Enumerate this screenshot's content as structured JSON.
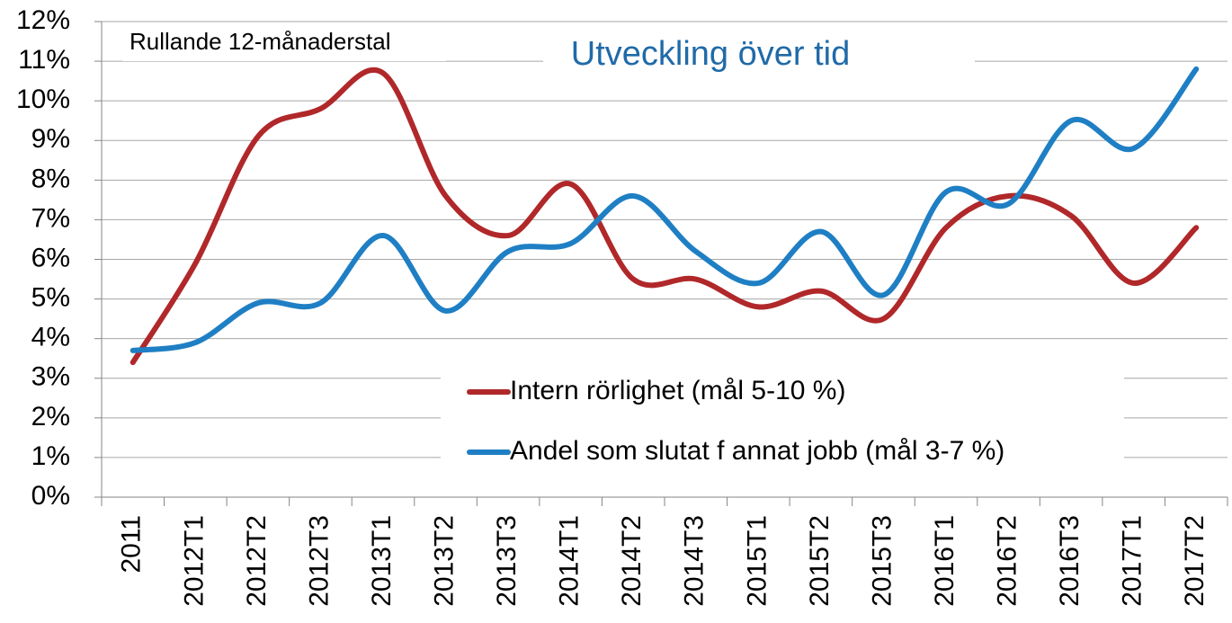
{
  "chart_data": {
    "type": "line",
    "title": "Utveckling över tid",
    "annotation": "Rullande 12-månaderstal",
    "categories": [
      "2011",
      "2012T1",
      "2012T2",
      "2012T3",
      "2013T1",
      "2013T2",
      "2013T3",
      "2014T1",
      "2014T2",
      "2014T3",
      "2015T1",
      "2015T2",
      "2015T3",
      "2016T1",
      "2016T2",
      "2016T3",
      "2017T1",
      "2017T2"
    ],
    "series": [
      {
        "name": "Intern rörlighet (mål 5-10 %)",
        "color": "#b0282a",
        "values": [
          3.4,
          5.9,
          9.1,
          9.8,
          10.7,
          7.6,
          6.6,
          7.9,
          5.5,
          5.5,
          4.8,
          5.2,
          4.5,
          6.8,
          7.6,
          7.1,
          5.4,
          6.8
        ]
      },
      {
        "name": "Andel som slutat f annat jobb (mål 3-7 %)",
        "color": "#1f7fc4",
        "values": [
          3.7,
          3.9,
          4.9,
          4.9,
          6.6,
          4.7,
          6.2,
          6.4,
          7.6,
          6.2,
          5.4,
          6.7,
          5.1,
          7.7,
          7.4,
          9.5,
          8.8,
          10.8
        ]
      }
    ],
    "ylim": [
      0,
      12
    ],
    "yticks": [
      {
        "value": 0,
        "label": "0%"
      },
      {
        "value": 1,
        "label": "1%"
      },
      {
        "value": 2,
        "label": "2%"
      },
      {
        "value": 3,
        "label": "3%"
      },
      {
        "value": 4,
        "label": "4%"
      },
      {
        "value": 5,
        "label": "5%"
      },
      {
        "value": 6,
        "label": "6%"
      },
      {
        "value": 7,
        "label": "7%"
      },
      {
        "value": 8,
        "label": "8%"
      },
      {
        "value": 9,
        "label": "9%"
      },
      {
        "value": 10,
        "label": "10%"
      },
      {
        "value": 11,
        "label": "11%"
      },
      {
        "value": 12,
        "label": "12%"
      }
    ],
    "grid": true,
    "smooth": true
  }
}
